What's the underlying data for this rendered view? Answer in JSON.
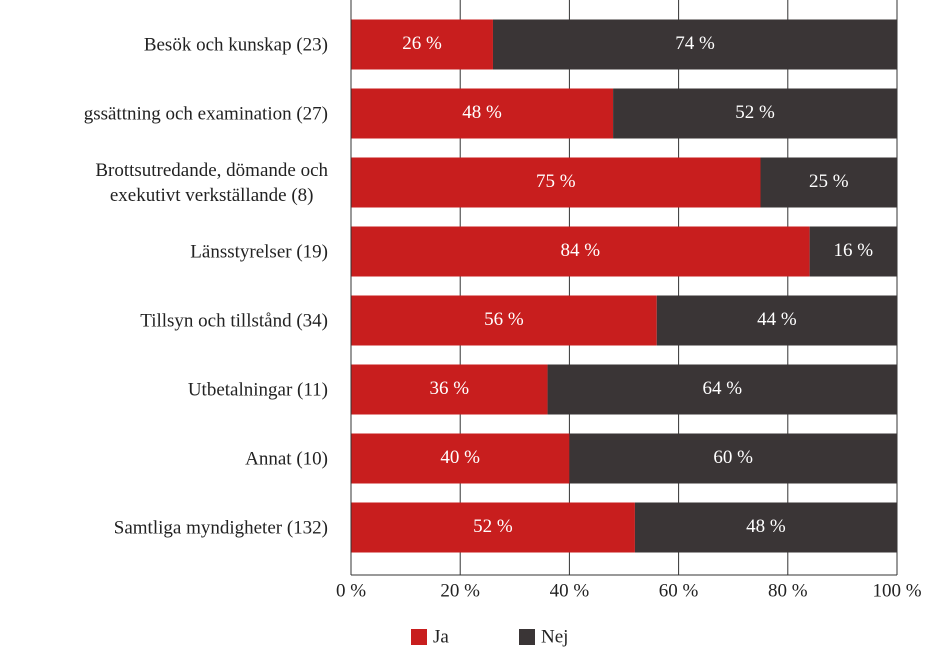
{
  "chart_data": {
    "type": "bar",
    "orientation": "horizontal",
    "stacked": true,
    "categories": [
      "Besök och kunskap (23)",
      "gssättning och examination (27)",
      "Brottsutredande, dömande och\nexekutivt verkställande (8)",
      "Länsstyrelser (19)",
      "Tillsyn och tillstånd (34)",
      "Utbetalningar (11)",
      "Annat (10)",
      "Samtliga myndigheter (132)"
    ],
    "series": [
      {
        "name": "Ja",
        "color": "#c81e1e",
        "values": [
          26,
          48,
          75,
          84,
          56,
          36,
          40,
          52
        ],
        "value_labels": [
          "26 %",
          "48 %",
          "75 %",
          "84 %",
          "56 %",
          "36 %",
          "40 %",
          "52 %"
        ]
      },
      {
        "name": "Nej",
        "color": "#3a3536",
        "values": [
          74,
          52,
          25,
          16,
          44,
          64,
          60,
          48
        ],
        "value_labels": [
          "74 %",
          "52 %",
          "25 %",
          "16 %",
          "44 %",
          "64 %",
          "60 %",
          "48 %"
        ]
      }
    ],
    "xlim": [
      0,
      100
    ],
    "xticks": [
      {
        "value": 0,
        "label": "0 %"
      },
      {
        "value": 20,
        "label": "20 %"
      },
      {
        "value": 40,
        "label": "40 %"
      },
      {
        "value": 60,
        "label": "60 %"
      },
      {
        "value": 80,
        "label": "80 %"
      },
      {
        "value": 100,
        "label": "100 %"
      }
    ],
    "grid": true,
    "legend": "bottom"
  }
}
